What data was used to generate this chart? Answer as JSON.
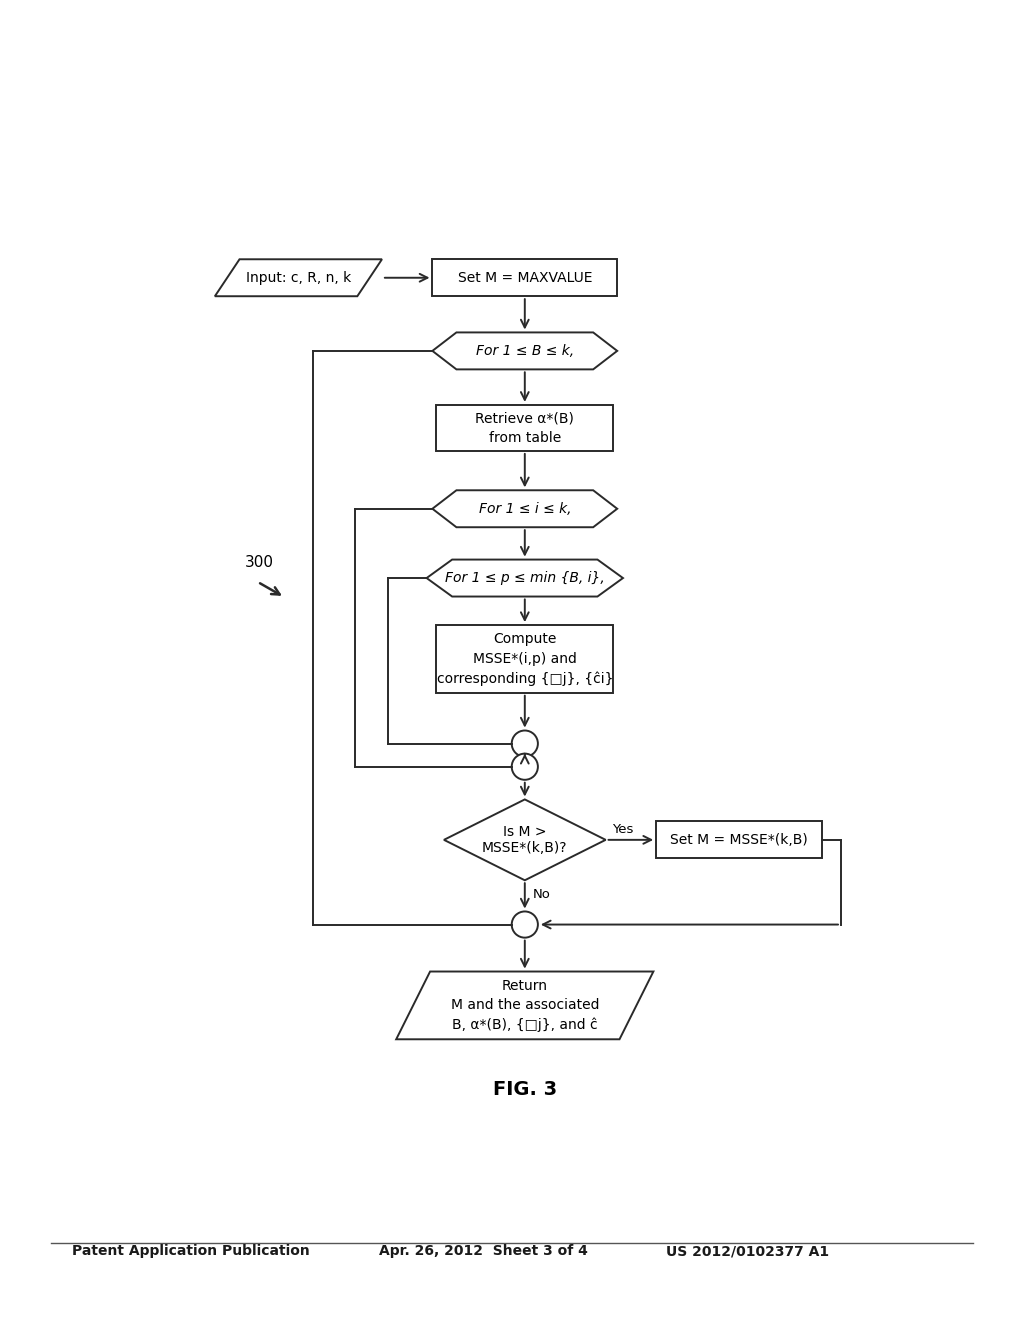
{
  "background_color": "#ffffff",
  "header_left": "Patent Application Publication",
  "header_center": "Apr. 26, 2012  Sheet 3 of 4",
  "header_right": "US 2012/0102377 A1",
  "fig_label": "FIG. 3"
}
